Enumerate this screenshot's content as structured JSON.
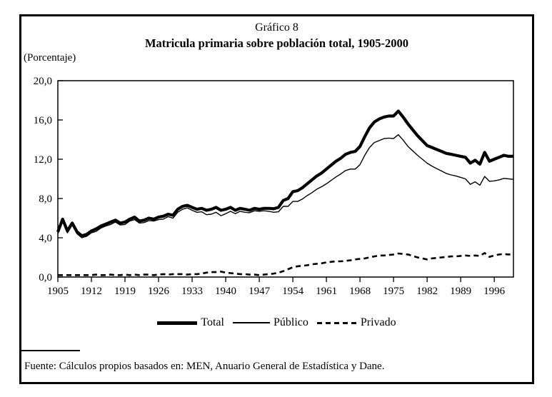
{
  "figure": {
    "label": "Gráfico 8",
    "title": "Matricula primaria sobre población total, 1905-2000",
    "y_unit_label": "(Porcentaje)",
    "source": "Fuente: Cálculos propios basados en: MEN, Anuario General de Estadística y Dane."
  },
  "chart_data": {
    "type": "line",
    "title": "Matricula primaria sobre población total, 1905-2000",
    "xlabel": "",
    "ylabel": "(Porcentaje)",
    "x_start": 1905,
    "x_end": 2000,
    "ylim": [
      0,
      20
    ],
    "grid": false,
    "legend_position": "bottom",
    "x_ticks": [
      1905,
      1912,
      1919,
      1926,
      1933,
      1940,
      1947,
      1954,
      1961,
      1968,
      1975,
      1982,
      1989,
      1996
    ],
    "x_tick_labels": [
      "1905",
      "1912",
      "1919",
      "1926",
      "1933",
      "1940",
      "1947",
      "1954",
      "1961",
      "1968",
      "1975",
      "1982",
      "1989",
      "1996"
    ],
    "y_ticks": [
      0,
      4,
      8,
      12,
      16,
      20
    ],
    "y_tick_labels": [
      "0,0",
      "4,0",
      "8,0",
      "12,0",
      "16,0",
      "20,0"
    ],
    "series": [
      {
        "name": "Total",
        "style": "thick",
        "values": [
          4.6,
          5.9,
          4.7,
          5.5,
          4.6,
          4.2,
          4.35,
          4.7,
          4.9,
          5.2,
          5.4,
          5.6,
          5.8,
          5.5,
          5.6,
          5.9,
          6.1,
          5.7,
          5.8,
          6.0,
          5.9,
          6.1,
          6.2,
          6.4,
          6.3,
          6.9,
          7.2,
          7.3,
          7.1,
          6.9,
          7.0,
          6.8,
          6.9,
          7.1,
          6.8,
          6.9,
          7.1,
          6.8,
          7.0,
          6.9,
          6.8,
          7.0,
          6.9,
          7.0,
          7.0,
          6.95,
          7.1,
          7.8,
          8.0,
          8.7,
          8.8,
          9.1,
          9.5,
          9.9,
          10.3,
          10.6,
          11.0,
          11.4,
          11.8,
          12.1,
          12.5,
          12.7,
          12.8,
          13.3,
          14.3,
          15.2,
          15.8,
          16.1,
          16.3,
          16.4,
          16.4,
          16.9,
          16.3,
          15.6,
          15.0,
          14.4,
          13.9,
          13.4,
          13.2,
          13.0,
          12.8,
          12.6,
          12.5,
          12.4,
          12.3,
          12.2,
          11.6,
          11.9,
          11.5,
          12.7,
          11.8,
          12.0,
          12.2,
          12.4,
          12.3,
          12.3
        ]
      },
      {
        "name": "Público",
        "style": "thin",
        "values": [
          4.4,
          5.7,
          4.5,
          5.3,
          4.4,
          4.0,
          4.15,
          4.5,
          4.65,
          5.0,
          5.2,
          5.35,
          5.6,
          5.3,
          5.35,
          5.7,
          5.85,
          5.5,
          5.55,
          5.75,
          5.7,
          5.85,
          5.9,
          6.15,
          6.0,
          6.6,
          6.9,
          7.05,
          6.8,
          6.6,
          6.65,
          6.35,
          6.4,
          6.6,
          6.25,
          6.45,
          6.7,
          6.45,
          6.7,
          6.6,
          6.55,
          6.75,
          6.7,
          6.75,
          6.7,
          6.6,
          6.65,
          7.2,
          7.2,
          7.7,
          7.7,
          7.95,
          8.3,
          8.6,
          8.95,
          9.2,
          9.5,
          9.85,
          10.2,
          10.5,
          10.85,
          11.0,
          11.0,
          11.45,
          12.4,
          13.2,
          13.7,
          13.9,
          14.1,
          14.15,
          14.1,
          14.5,
          13.95,
          13.3,
          12.85,
          12.4,
          12.0,
          11.6,
          11.3,
          11.05,
          10.8,
          10.55,
          10.4,
          10.3,
          10.15,
          10.0,
          9.45,
          9.7,
          9.35,
          10.25,
          9.75,
          9.8,
          9.9,
          10.05,
          10.0,
          9.95
        ]
      },
      {
        "name": "Privado",
        "style": "dashed",
        "values": [
          0.2,
          0.2,
          0.2,
          0.2,
          0.2,
          0.2,
          0.2,
          0.2,
          0.25,
          0.2,
          0.2,
          0.25,
          0.2,
          0.2,
          0.25,
          0.2,
          0.25,
          0.2,
          0.25,
          0.25,
          0.2,
          0.25,
          0.3,
          0.25,
          0.3,
          0.3,
          0.3,
          0.25,
          0.3,
          0.3,
          0.35,
          0.45,
          0.5,
          0.5,
          0.55,
          0.45,
          0.4,
          0.35,
          0.3,
          0.3,
          0.25,
          0.25,
          0.2,
          0.25,
          0.3,
          0.35,
          0.45,
          0.6,
          0.8,
          1.0,
          1.1,
          1.15,
          1.2,
          1.3,
          1.35,
          1.4,
          1.5,
          1.55,
          1.6,
          1.6,
          1.65,
          1.7,
          1.8,
          1.85,
          1.9,
          2.0,
          2.1,
          2.2,
          2.2,
          2.25,
          2.3,
          2.4,
          2.35,
          2.3,
          2.15,
          2.0,
          1.9,
          1.8,
          1.9,
          1.95,
          2.0,
          2.05,
          2.1,
          2.1,
          2.15,
          2.2,
          2.15,
          2.2,
          2.15,
          2.45,
          2.05,
          2.2,
          2.3,
          2.35,
          2.3,
          2.35
        ]
      }
    ]
  }
}
